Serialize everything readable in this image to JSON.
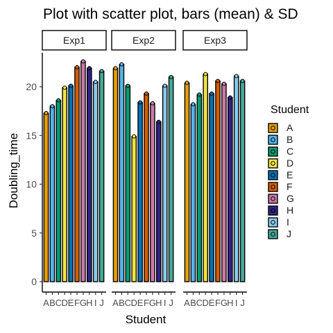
{
  "chart_data": {
    "type": "bar",
    "title": "Plot with scatter plot, bars (mean) & SD",
    "xlabel": "Student",
    "ylabel": "Doubling_time",
    "ylim": [
      0,
      24
    ],
    "yticks": [
      0,
      5,
      10,
      15,
      20
    ],
    "grid": false,
    "legend": {
      "title": "Student",
      "placement": "right",
      "entries": [
        "A",
        "B",
        "C",
        "D",
        "E",
        "F",
        "G",
        "H",
        "I",
        "J"
      ]
    },
    "categories": [
      "A",
      "B",
      "C",
      "D",
      "E",
      "F",
      "G",
      "H",
      "I",
      "J"
    ],
    "colors": [
      "#E69F00",
      "#56B4E9",
      "#009E73",
      "#F0E442",
      "#0072B2",
      "#D55E00",
      "#CC79A7",
      "#332288",
      "#88CCEE",
      "#44AA99"
    ],
    "facets": [
      {
        "name": "Exp1",
        "values": [
          17.3,
          18.0,
          18.6,
          19.9,
          20.1,
          22.0,
          22.6,
          21.9,
          20.5,
          21.6
        ]
      },
      {
        "name": "Exp2",
        "values": [
          21.9,
          22.3,
          20.1,
          14.9,
          18.4,
          19.3,
          18.3,
          16.4,
          20.1,
          21.0
        ]
      },
      {
        "name": "Exp3",
        "values": [
          20.4,
          18.2,
          19.2,
          21.3,
          19.3,
          20.6,
          20.3,
          18.9,
          21.1,
          20.6
        ]
      }
    ]
  }
}
